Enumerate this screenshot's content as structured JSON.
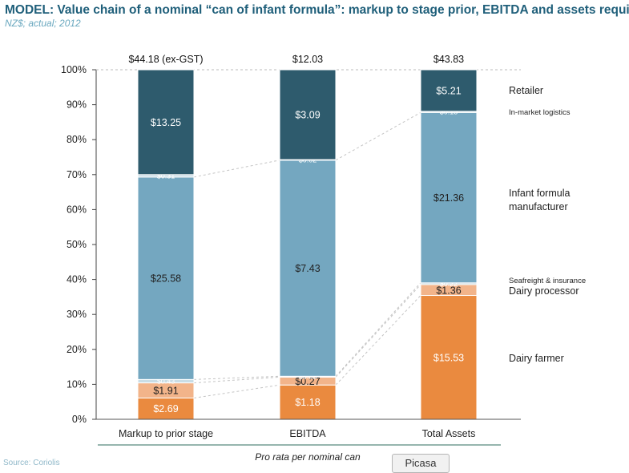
{
  "header": {
    "title": "MODEL: Value chain of a nominal “can of infant formula”: markup to stage prior, EBITDA and assets required",
    "subtitle": "NZ$; actual; 2012"
  },
  "footer": {
    "source": "Source: Coriolis",
    "picasa_button": "Picasa"
  },
  "colors": {
    "dairy_farmer": "#ea8a3f",
    "dairy_processor": "#f2b48a",
    "seafreight": "#c9dde6",
    "infant_formula_manufacturer": "#74a7c0",
    "in_market_logistics": "#c9dde6",
    "retailer": "#2e5b6d"
  },
  "chart_data": {
    "type": "bar",
    "stacked": true,
    "percent_scale": true,
    "categories": [
      "Markup to prior stage",
      "EBITDA",
      "Total Assets"
    ],
    "totals": [
      "$44.18 (ex-GST)",
      "$12.03",
      "$43.83"
    ],
    "ylim": [
      0,
      100
    ],
    "yticks": [
      "0%",
      "10%",
      "20%",
      "30%",
      "40%",
      "50%",
      "60%",
      "70%",
      "80%",
      "90%",
      "100%"
    ],
    "xlabel": "Pro rata per nominal can",
    "series": [
      {
        "name": "Dairy farmer",
        "values": [
          2.69,
          1.18,
          15.53
        ],
        "labels": [
          "$2.69",
          "$1.18",
          "$15.53"
        ]
      },
      {
        "name": "Dairy processor",
        "values": [
          1.91,
          0.27,
          1.36
        ],
        "labels": [
          "$1.91",
          "$0.27",
          "$1.36"
        ]
      },
      {
        "name": "Seafreight & insurance",
        "values": [
          0.43,
          0.03,
          0.22
        ],
        "labels": [
          "$0.43",
          "$0.03",
          "$0.22"
        ]
      },
      {
        "name": "Infant formula manufacturer",
        "values": [
          25.58,
          7.43,
          21.36
        ],
        "labels": [
          "$25.58",
          "$7.43",
          "$21.36"
        ]
      },
      {
        "name": "In-market logistics",
        "values": [
          0.31,
          0.02,
          0.15
        ],
        "labels": [
          "$0.31",
          "$0.02",
          "$0.15"
        ]
      },
      {
        "name": "Retailer",
        "values": [
          13.25,
          3.09,
          5.21
        ],
        "labels": [
          "$13.25",
          "$3.09",
          "$5.21"
        ]
      }
    ],
    "legend_placement": "right"
  }
}
